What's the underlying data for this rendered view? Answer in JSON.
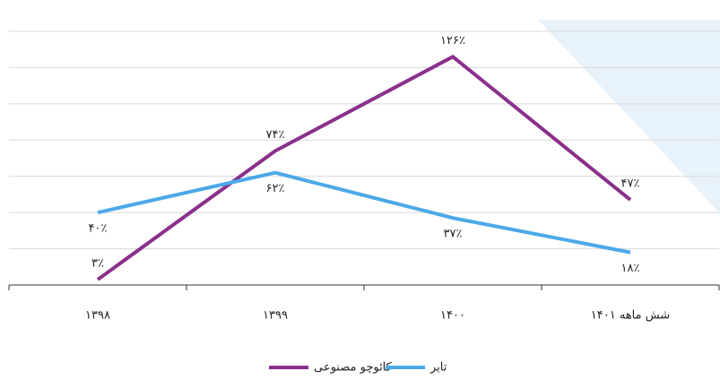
{
  "chart_data": {
    "type": "line",
    "categories": [
      "۱۳۹۸",
      "۱۳۹۹",
      "۱۴۰۰",
      "شش ماهه ۱۴۰۱"
    ],
    "series": [
      {
        "name": "کائوچو مصنوعی",
        "color": "#8b2f8c",
        "values": [
          3,
          74,
          126,
          47
        ],
        "value_labels": [
          "۳٪",
          "۷۴٪",
          "۱۲۶٪",
          "۴۷٪"
        ]
      },
      {
        "name": "تایر",
        "color": "#4ba9e9",
        "values": [
          40,
          62,
          37,
          18
        ],
        "value_labels": [
          "۴۰٪",
          "۶۲٪",
          "۳۷٪",
          "۱۸٪"
        ]
      }
    ],
    "ylim": [
      0,
      140
    ],
    "yticks": [
      0,
      20,
      40,
      60,
      80,
      100,
      120,
      140
    ],
    "grid": true,
    "legend": "bottom"
  }
}
